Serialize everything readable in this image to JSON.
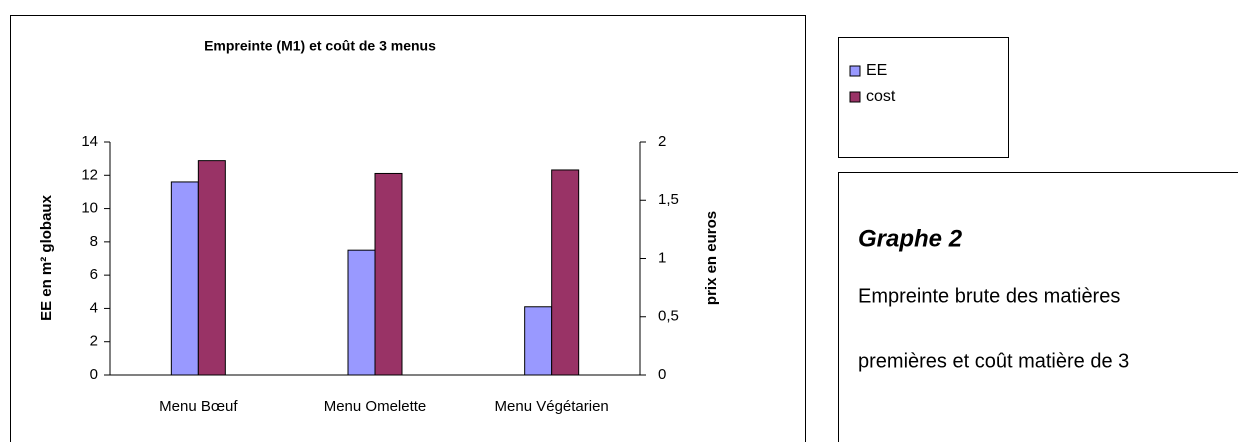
{
  "chart_data": {
    "type": "bar",
    "title": "Empreinte (M1) et coût de 3 menus",
    "categories": [
      "Menu Bœuf",
      "Menu Omelette",
      "Menu Végétarien"
    ],
    "series": [
      {
        "name": "EE",
        "color": "#9999ff",
        "values": [
          11.6,
          7.5,
          4.1
        ]
      },
      {
        "name": "cost",
        "color": "#993366",
        "values": [
          1.84,
          1.73,
          1.76
        ],
        "axis": "y2"
      }
    ],
    "ylabel": "EE en m² globaux",
    "y2label": "prix en euros",
    "ylim": [
      0,
      14
    ],
    "yticks": [
      0,
      2,
      4,
      6,
      8,
      10,
      12,
      14
    ],
    "y2lim": [
      0,
      2
    ],
    "y2ticks": [
      0,
      {
        "value": 0.5,
        "label": "0,5"
      },
      1,
      {
        "value": 1.5,
        "label": "1,5"
      },
      2
    ],
    "grid": false,
    "legend": "right"
  },
  "caption": {
    "title": "Graphe 2",
    "lines": [
      "Empreinte brute des matières",
      "premières et coût matière de 3"
    ]
  }
}
